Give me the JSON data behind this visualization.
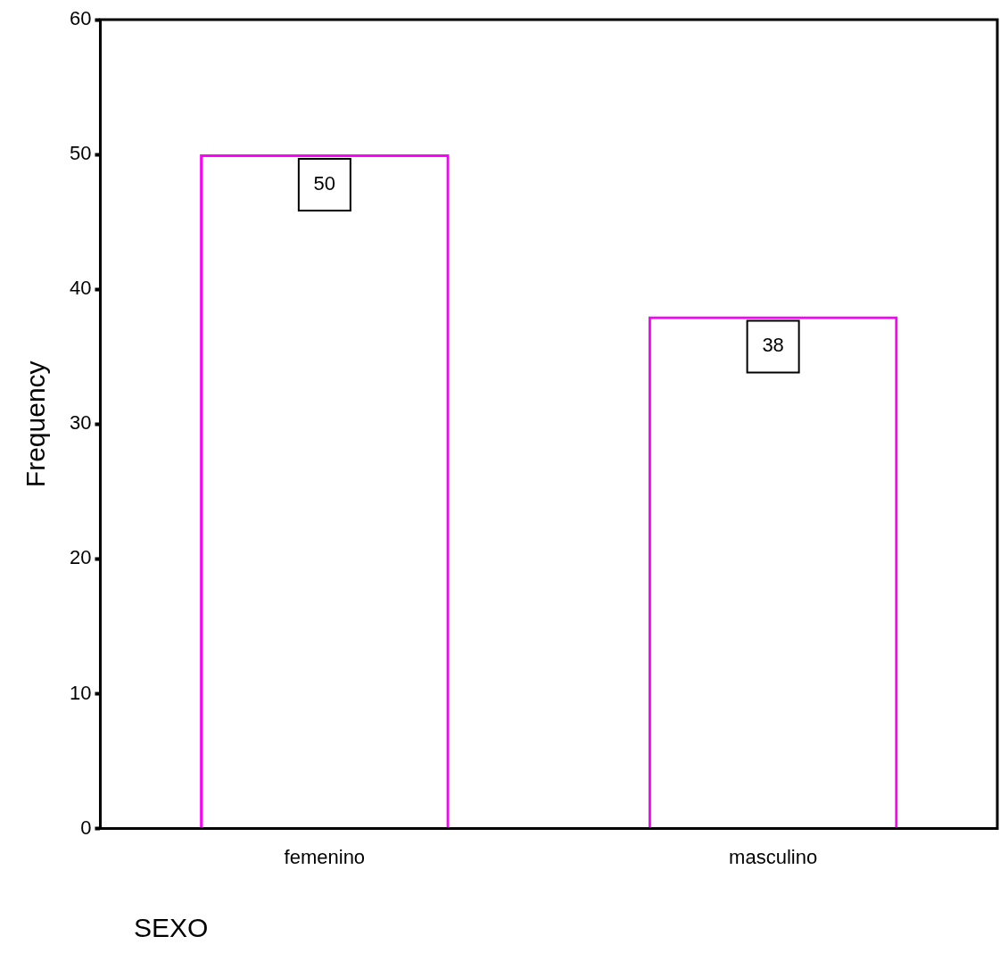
{
  "chart_data": {
    "type": "bar",
    "xlabel": "SEXO",
    "ylabel": "Frequency",
    "categories": [
      "femenino",
      "masculino"
    ],
    "values": [
      50,
      38
    ],
    "color": "#ff00ff",
    "ylim": [
      0,
      60
    ],
    "yticks": [
      0,
      10,
      20,
      30,
      40,
      50,
      60
    ],
    "grid": false,
    "legend": false,
    "data_labels": true
  }
}
